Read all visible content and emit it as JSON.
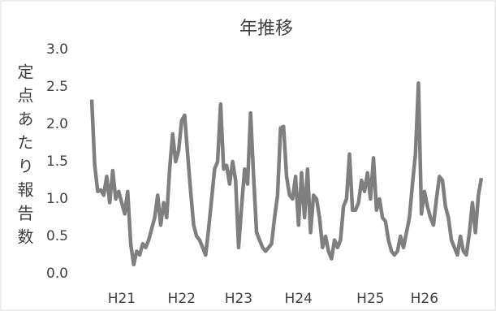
{
  "chart_data": {
    "type": "line",
    "title": "年推移",
    "y_label": "定点あたり報告数",
    "color": "#7f7f7f",
    "grid": false,
    "ylim": [
      0,
      3
    ],
    "yticks": [
      {
        "value": 0,
        "label": "0.0"
      },
      {
        "value": 0.5,
        "label": "0.5"
      },
      {
        "value": 1,
        "label": "1.0"
      },
      {
        "value": 1.5,
        "label": "1.5"
      },
      {
        "value": 2,
        "label": "2.0"
      },
      {
        "value": 2.5,
        "label": "2.5"
      },
      {
        "value": 3,
        "label": "3.0"
      }
    ],
    "categories": [
      null,
      null,
      null,
      null,
      null,
      null,
      null,
      null,
      null,
      null,
      "H21",
      null,
      null,
      null,
      null,
      null,
      null,
      null,
      null,
      null,
      null,
      null,
      null,
      null,
      null,
      null,
      null,
      null,
      null,
      null,
      "H22",
      null,
      null,
      null,
      null,
      null,
      null,
      null,
      null,
      null,
      null,
      null,
      null,
      null,
      null,
      null,
      null,
      null,
      null,
      "H23",
      null,
      null,
      null,
      null,
      null,
      null,
      null,
      null,
      null,
      null,
      null,
      null,
      null,
      null,
      null,
      null,
      null,
      null,
      null,
      "H24",
      null,
      null,
      null,
      null,
      null,
      null,
      null,
      null,
      null,
      null,
      null,
      null,
      null,
      null,
      null,
      null,
      null,
      null,
      null,
      null,
      null,
      null,
      null,
      "H25",
      null,
      null,
      null,
      null,
      null,
      null,
      null,
      null,
      null,
      null,
      null,
      null,
      null,
      null,
      null,
      null,
      null,
      "H26",
      null,
      null,
      null,
      null,
      null,
      null,
      null,
      null,
      null,
      null,
      null,
      null,
      null,
      null,
      null,
      null,
      null,
      null,
      null
    ],
    "values": [
      2.33,
      1.45,
      1.1,
      1.12,
      1.05,
      1.3,
      0.95,
      1.38,
      1.0,
      1.1,
      0.95,
      0.8,
      1.1,
      0.4,
      0.12,
      0.3,
      0.25,
      0.4,
      0.35,
      0.45,
      0.6,
      0.75,
      1.05,
      0.65,
      0.95,
      0.75,
      1.4,
      1.87,
      1.5,
      1.65,
      2.05,
      2.12,
      1.6,
      1.1,
      0.65,
      0.5,
      0.45,
      0.35,
      0.25,
      0.6,
      1.0,
      1.4,
      1.5,
      2.27,
      1.4,
      1.45,
      1.2,
      1.5,
      1.25,
      0.35,
      0.9,
      1.4,
      1.2,
      2.15,
      1.3,
      0.55,
      0.45,
      0.35,
      0.3,
      0.35,
      0.4,
      0.75,
      1.05,
      1.95,
      1.97,
      1.3,
      1.05,
      1.0,
      1.3,
      0.65,
      1.35,
      0.75,
      1.4,
      0.55,
      1.05,
      1.0,
      0.75,
      0.35,
      0.5,
      0.3,
      0.2,
      0.45,
      0.35,
      0.45,
      0.9,
      1.0,
      1.6,
      0.85,
      0.85,
      0.95,
      1.25,
      1.1,
      1.35,
      1.0,
      1.55,
      0.85,
      1.0,
      0.75,
      0.7,
      0.45,
      0.3,
      0.25,
      0.3,
      0.5,
      0.35,
      0.55,
      0.75,
      1.2,
      1.6,
      2.55,
      0.8,
      1.1,
      0.9,
      0.75,
      0.65,
      1.0,
      1.3,
      1.25,
      0.9,
      0.75,
      0.45,
      0.35,
      0.25,
      0.5,
      0.3,
      0.25,
      0.55,
      0.95,
      0.55,
      1.05,
      1.28
    ]
  }
}
